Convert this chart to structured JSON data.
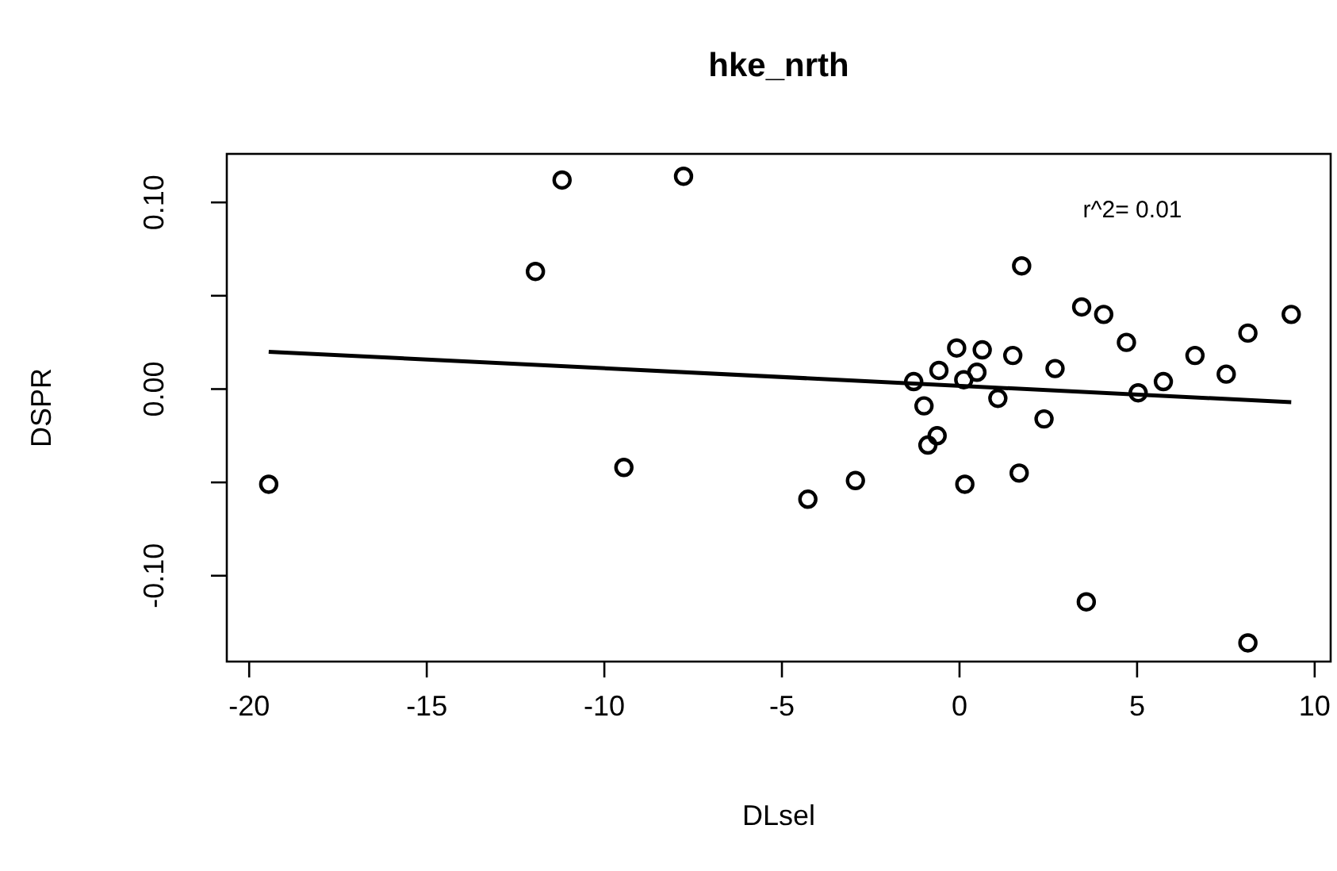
{
  "chart_data": {
    "type": "scatter",
    "title": "hke_nrth",
    "xlabel": "DLsel",
    "ylabel": "DSPR",
    "xlim": [
      -20.63,
      10.45
    ],
    "ylim": [
      -0.146,
      0.126
    ],
    "xticks": [
      -20,
      -15,
      -10,
      -5,
      0,
      5,
      10
    ],
    "yticks": [
      {
        "value": -0.1,
        "label": "-0.10"
      },
      {
        "value": -0.05,
        "label": null
      },
      {
        "value": 0,
        "label": "0.00"
      },
      {
        "value": 0.05,
        "label": null
      },
      {
        "value": 0.1,
        "label": "0.10"
      }
    ],
    "grid": false,
    "annotations": [
      "r^2= 0.01"
    ],
    "series": [
      {
        "marker": "circle",
        "color": "#000000",
        "x": [
          -19.45,
          -11.94,
          -11.19,
          -7.77,
          -9.45,
          -4.27,
          -2.93,
          1.75,
          3.44,
          4.06,
          4.7,
          9.34,
          8.12,
          6.63,
          7.51,
          5.74,
          5.03,
          2.69,
          1.5,
          0.64,
          -0.08,
          -0.58,
          0.49,
          0.12,
          -1.29,
          1.08,
          -1.0,
          2.38,
          -0.63,
          -0.89,
          1.68,
          0.15,
          3.57,
          8.12
        ],
        "values": [
          -0.051,
          0.063,
          0.112,
          0.114,
          -0.042,
          -0.059,
          -0.049,
          0.066,
          0.044,
          0.04,
          0.025,
          0.04,
          0.03,
          0.018,
          0.008,
          0.004,
          -0.002,
          0.011,
          0.018,
          0.021,
          0.022,
          0.01,
          0.009,
          0.005,
          0.004,
          -0.005,
          -0.009,
          -0.016,
          -0.025,
          -0.03,
          -0.045,
          -0.051,
          -0.114,
          -0.136
        ]
      },
      {
        "type": "line",
        "marker": "none",
        "color": "#000000",
        "x": [
          -19.45,
          9.34
        ],
        "values": [
          0.02,
          -0.007
        ]
      }
    ]
  }
}
